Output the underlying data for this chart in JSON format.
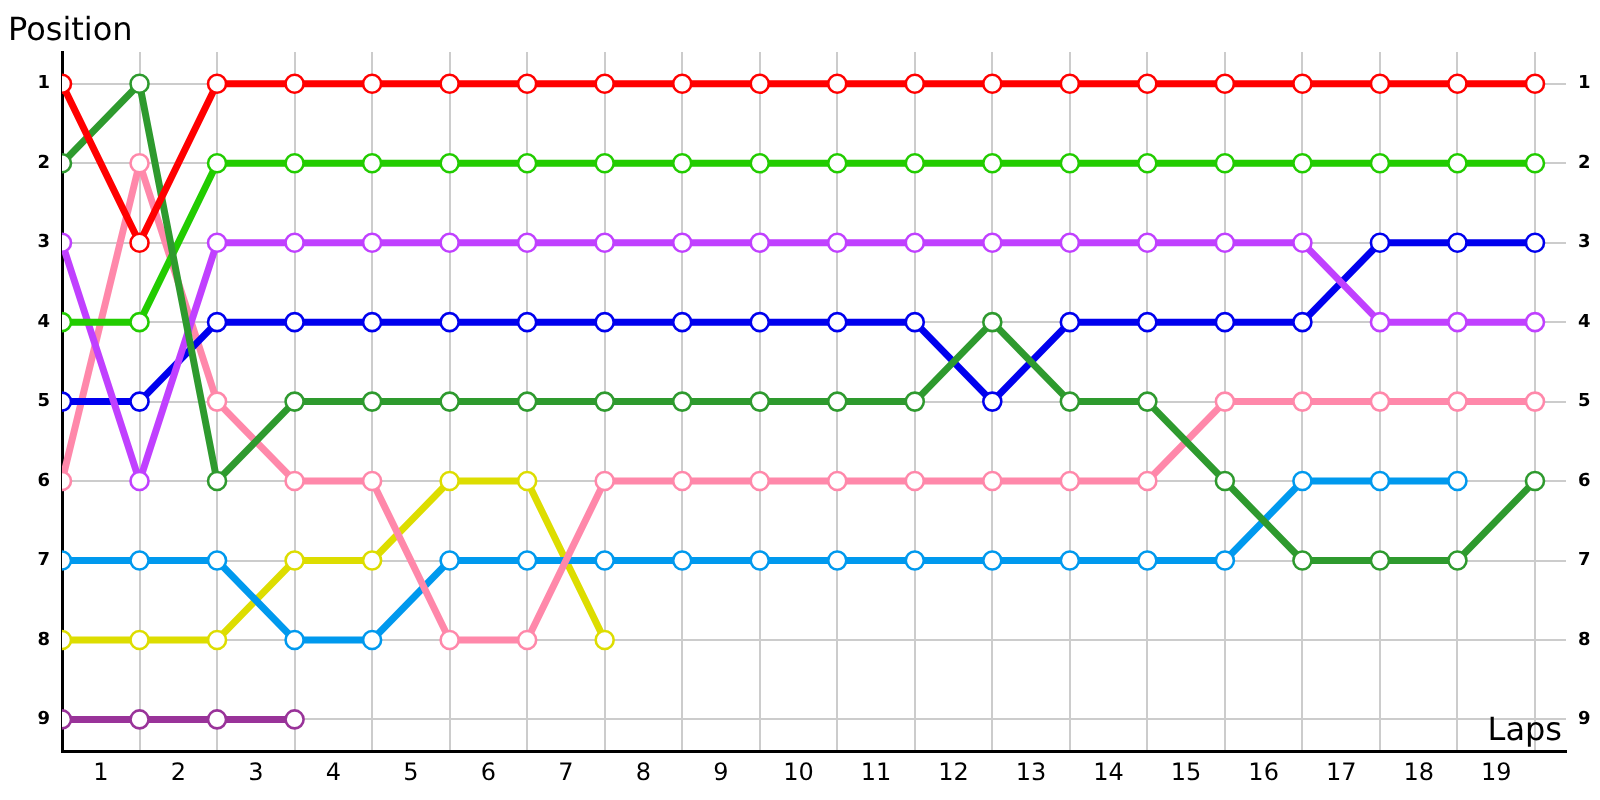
{
  "chart_data": {
    "type": "line",
    "xlabel": "Laps",
    "ylabel": "Position",
    "x": [
      0,
      1,
      2,
      3,
      4,
      5,
      6,
      7,
      8,
      9,
      10,
      11,
      12,
      13,
      14,
      15,
      16,
      17,
      18,
      19
    ],
    "xlim": [
      0,
      19.4
    ],
    "xticks": [
      {
        "value": 0,
        "label": null
      },
      {
        "value": 0.5,
        "label": "1"
      },
      {
        "value": 1,
        "label": null
      },
      {
        "value": 1.5,
        "label": "2"
      },
      {
        "value": 2,
        "label": null
      },
      {
        "value": 2.5,
        "label": "3"
      },
      {
        "value": 3,
        "label": null
      },
      {
        "value": 3.5,
        "label": "4"
      },
      {
        "value": 4,
        "label": null
      },
      {
        "value": 4.5,
        "label": "5"
      },
      {
        "value": 5,
        "label": null
      },
      {
        "value": 5.5,
        "label": "6"
      },
      {
        "value": 6,
        "label": null
      },
      {
        "value": 6.5,
        "label": "7"
      },
      {
        "value": 7,
        "label": null
      },
      {
        "value": 7.5,
        "label": "8"
      },
      {
        "value": 8,
        "label": null
      },
      {
        "value": 8.5,
        "label": "9"
      },
      {
        "value": 9,
        "label": null
      },
      {
        "value": 9.5,
        "label": "10"
      },
      {
        "value": 10,
        "label": null
      },
      {
        "value": 10.5,
        "label": "11"
      },
      {
        "value": 11,
        "label": null
      },
      {
        "value": 11.5,
        "label": "12"
      },
      {
        "value": 12,
        "label": null
      },
      {
        "value": 12.5,
        "label": "13"
      },
      {
        "value": 13,
        "label": null
      },
      {
        "value": 13.5,
        "label": "14"
      },
      {
        "value": 14,
        "label": null
      },
      {
        "value": 14.5,
        "label": "15"
      },
      {
        "value": 15,
        "label": null
      },
      {
        "value": 15.5,
        "label": "16"
      },
      {
        "value": 16,
        "label": null
      },
      {
        "value": 16.5,
        "label": "17"
      },
      {
        "value": 17,
        "label": null
      },
      {
        "value": 17.5,
        "label": "18"
      },
      {
        "value": 18,
        "label": null
      },
      {
        "value": 18.5,
        "label": "19"
      },
      {
        "value": 19,
        "label": null
      }
    ],
    "ylim": [
      9.4,
      0.6
    ],
    "yticks": [
      1,
      2,
      3,
      4,
      5,
      6,
      7,
      8,
      9
    ],
    "y2lim": [
      9.4,
      0.6
    ],
    "y2ticks": [
      1,
      2,
      3,
      4,
      5,
      6,
      7,
      8,
      9
    ],
    "grid": true,
    "legend": false,
    "marker": "circle",
    "line_style": "solid",
    "series": [
      {
        "color": "#ff0000",
        "values": [
          1,
          3,
          1,
          1,
          1,
          1,
          1,
          1,
          1,
          1,
          1,
          1,
          1,
          1,
          1,
          1,
          1,
          1,
          1,
          1
        ]
      },
      {
        "color": "#2e9a2e",
        "values": [
          2,
          1,
          6,
          5,
          5,
          5,
          5,
          5,
          5,
          5,
          5,
          5,
          4,
          5,
          5,
          6,
          7,
          7,
          7,
          6
        ]
      },
      {
        "color": "#22cc00",
        "values": [
          4,
          4,
          2,
          2,
          2,
          2,
          2,
          2,
          2,
          2,
          2,
          2,
          2,
          2,
          2,
          2,
          2,
          2,
          2,
          2
        ]
      },
      {
        "color": "#c040ff",
        "values": [
          3,
          6,
          3,
          3,
          3,
          3,
          3,
          3,
          3,
          3,
          3,
          3,
          3,
          3,
          3,
          3,
          3,
          4,
          4,
          4
        ]
      },
      {
        "color": "#0000ee",
        "values": [
          5,
          5,
          4,
          4,
          4,
          4,
          4,
          4,
          4,
          4,
          4,
          4,
          5,
          4,
          4,
          4,
          4,
          3,
          3,
          3
        ]
      },
      {
        "color": "#ff88aa",
        "values": [
          6,
          2,
          5,
          6,
          6,
          8,
          8,
          6,
          6,
          6,
          6,
          6,
          6,
          6,
          6,
          5,
          5,
          5,
          5,
          5
        ]
      },
      {
        "color": "#0099ee",
        "values": [
          7,
          7,
          7,
          8,
          8,
          7,
          7,
          7,
          7,
          7,
          7,
          7,
          7,
          7,
          7,
          7,
          6,
          6,
          6,
          null
        ]
      },
      {
        "color": "#dddd00",
        "values": [
          8,
          8,
          8,
          7,
          7,
          6,
          6,
          8,
          null,
          null,
          null,
          null,
          null,
          null,
          null,
          null,
          null,
          null,
          null,
          null
        ]
      },
      {
        "color": "#993399",
        "values": [
          9,
          9,
          9,
          9,
          null,
          null,
          null,
          null,
          null,
          null,
          null,
          null,
          null,
          null,
          null,
          null,
          null,
          null,
          null,
          null
        ]
      }
    ]
  }
}
